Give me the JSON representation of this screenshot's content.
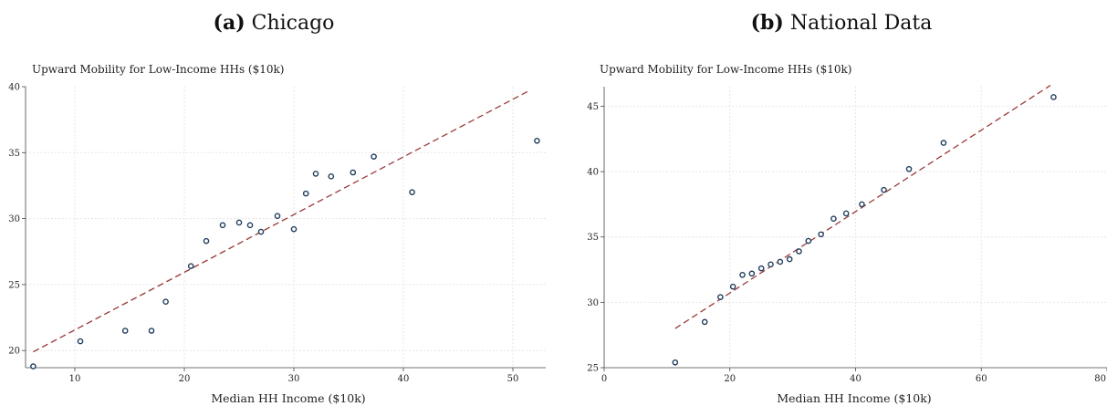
{
  "chart_data": [
    {
      "type": "scatter",
      "panel_tag": "(a)",
      "panel_name": "Chicago",
      "title": "(a) Chicago",
      "ylabel": "Upward Mobility for Low-Income HHs ($10k)",
      "xlabel": "Median HH Income ($10k)",
      "xlim": [
        5.5,
        53
      ],
      "ylim": [
        18.7,
        40
      ],
      "xticks": [
        10,
        20,
        30,
        40,
        50
      ],
      "yticks": [
        20,
        25,
        30,
        35,
        40
      ],
      "grid": true,
      "points": [
        {
          "x": 6.2,
          "y": 18.8
        },
        {
          "x": 10.5,
          "y": 20.7
        },
        {
          "x": 14.6,
          "y": 21.5
        },
        {
          "x": 17.0,
          "y": 21.5
        },
        {
          "x": 18.3,
          "y": 23.7
        },
        {
          "x": 20.6,
          "y": 26.4
        },
        {
          "x": 22.0,
          "y": 28.3
        },
        {
          "x": 23.5,
          "y": 29.5
        },
        {
          "x": 25.0,
          "y": 29.7
        },
        {
          "x": 26.0,
          "y": 29.5
        },
        {
          "x": 27.0,
          "y": 29.0
        },
        {
          "x": 28.5,
          "y": 30.2
        },
        {
          "x": 30.0,
          "y": 29.2
        },
        {
          "x": 31.1,
          "y": 31.9
        },
        {
          "x": 32.0,
          "y": 33.4
        },
        {
          "x": 33.4,
          "y": 33.2
        },
        {
          "x": 35.4,
          "y": 33.5
        },
        {
          "x": 37.3,
          "y": 34.7
        },
        {
          "x": 40.8,
          "y": 32.0
        },
        {
          "x": 52.2,
          "y": 35.9
        }
      ],
      "fit_line": {
        "x": [
          6.2,
          51.5
        ],
        "y": [
          19.9,
          39.7
        ]
      }
    },
    {
      "type": "scatter",
      "panel_tag": "(b)",
      "panel_name": "National Data",
      "title": "(b) National Data",
      "ylabel": "Upward Mobility for Low-Income HHs ($10k)",
      "xlabel": "Median HH Income ($10k)",
      "xlim": [
        0,
        80
      ],
      "ylim": [
        25,
        46.5
      ],
      "xticks": [
        0,
        20,
        40,
        60,
        80
      ],
      "yticks": [
        25,
        30,
        35,
        40,
        45
      ],
      "grid": true,
      "points": [
        {
          "x": 11.3,
          "y": 25.4
        },
        {
          "x": 16.0,
          "y": 28.5
        },
        {
          "x": 18.5,
          "y": 30.4
        },
        {
          "x": 20.5,
          "y": 31.2
        },
        {
          "x": 22.0,
          "y": 32.1
        },
        {
          "x": 23.5,
          "y": 32.2
        },
        {
          "x": 25.0,
          "y": 32.6
        },
        {
          "x": 26.5,
          "y": 32.9
        },
        {
          "x": 28.0,
          "y": 33.1
        },
        {
          "x": 29.5,
          "y": 33.3
        },
        {
          "x": 31.0,
          "y": 33.9
        },
        {
          "x": 32.5,
          "y": 34.7
        },
        {
          "x": 34.5,
          "y": 35.2
        },
        {
          "x": 36.5,
          "y": 36.4
        },
        {
          "x": 38.5,
          "y": 36.8
        },
        {
          "x": 41.0,
          "y": 37.5
        },
        {
          "x": 44.5,
          "y": 38.6
        },
        {
          "x": 48.5,
          "y": 40.2
        },
        {
          "x": 54.0,
          "y": 42.2
        },
        {
          "x": 71.5,
          "y": 45.7
        }
      ],
      "fit_line": {
        "x": [
          11.3,
          71.0
        ],
        "y": [
          28.0,
          46.6
        ]
      }
    }
  ]
}
